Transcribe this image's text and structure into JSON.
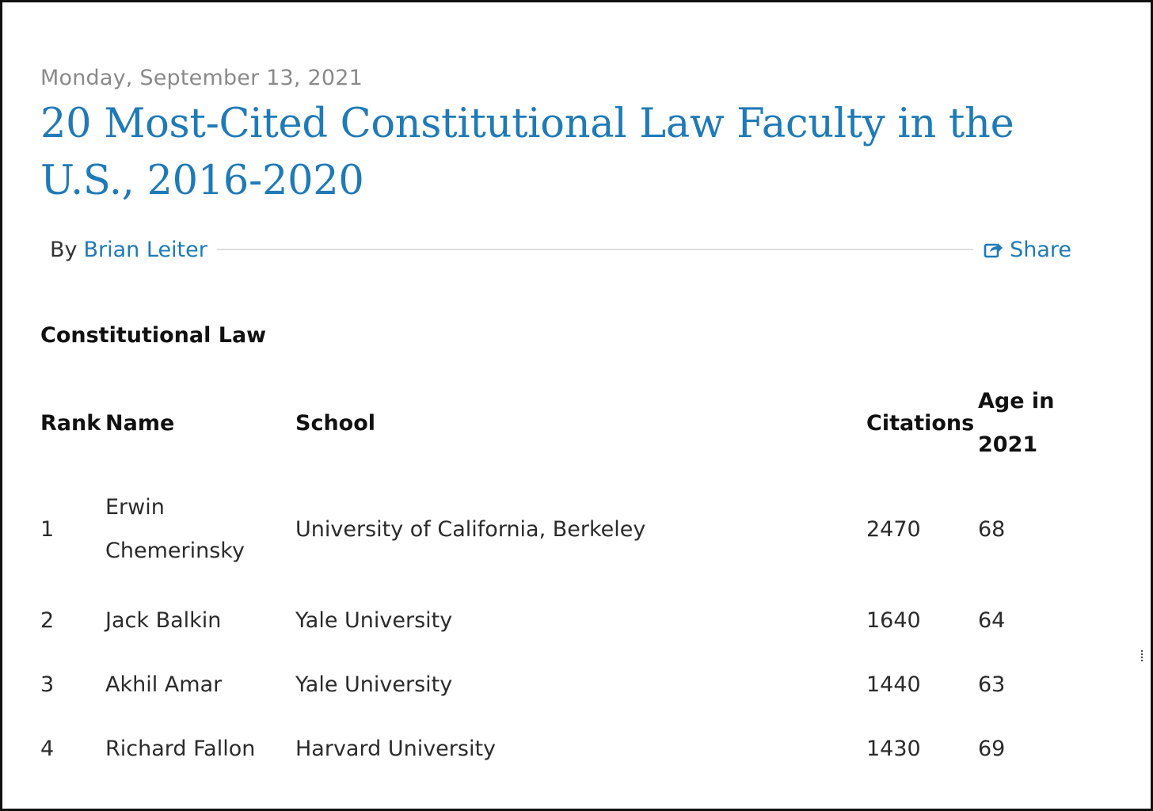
{
  "post": {
    "date": "Monday, September 13, 2021",
    "title": "20 Most-Cited Constitutional Law Faculty in the U.S., 2016-2020",
    "byline_prefix": "By",
    "author": "Brian Leiter",
    "share_label": "Share",
    "share_icon": "share-icon"
  },
  "section": {
    "heading": "Constitutional Law"
  },
  "table": {
    "headers": {
      "rank": "Rank",
      "name": "Name",
      "school": "School",
      "citations": "Citations",
      "age": "Age in 2021"
    },
    "rows": [
      {
        "rank": "1",
        "name": "Erwin Chemerinsky",
        "school": "University of California, Berkeley",
        "citations": "2470",
        "age": "68"
      },
      {
        "rank": "2",
        "name": "Jack Balkin",
        "school": "Yale University",
        "citations": "1640",
        "age": "64"
      },
      {
        "rank": "3",
        "name": "Akhil Amar",
        "school": "Yale University",
        "citations": "1440",
        "age": "63"
      },
      {
        "rank": "4",
        "name": "Richard Fallon",
        "school": "Harvard University",
        "citations": "1430",
        "age": "69"
      }
    ]
  },
  "colors": {
    "link": "#1f7ab8",
    "date": "#8a8a8a",
    "text": "#222222"
  }
}
